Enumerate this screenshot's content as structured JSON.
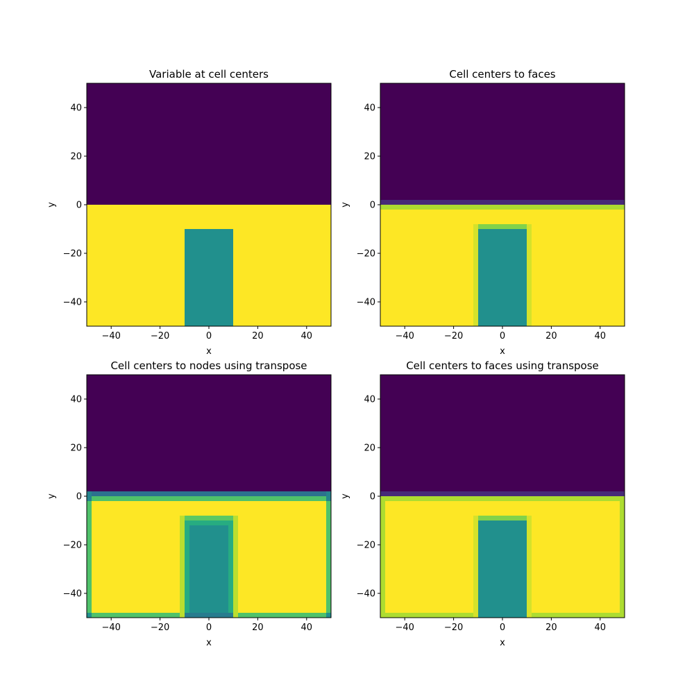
{
  "chart_data": [
    {
      "type": "heatmap",
      "title": "Variable at cell centers",
      "xlabel": "x",
      "ylabel": "y",
      "xlim": [
        -50,
        50
      ],
      "ylim": [
        -50,
        50
      ],
      "xticks": [
        "−40",
        "−20",
        "0",
        "20",
        "40"
      ],
      "yticks": [
        "−40",
        "−20",
        "0",
        "20",
        "40"
      ],
      "cells": [
        {
          "x": [
            -50,
            50
          ],
          "y": [
            0,
            50
          ],
          "value": 0.0
        },
        {
          "x": [
            -50,
            50
          ],
          "y": [
            -50,
            0
          ],
          "value": 1.0
        },
        {
          "x": [
            -10,
            10
          ],
          "y": [
            -50,
            -10
          ],
          "value": 0.5
        }
      ]
    },
    {
      "type": "heatmap",
      "title": "Cell centers to faces",
      "xlabel": "x",
      "ylabel": "y",
      "xlim": [
        -50,
        50
      ],
      "ylim": [
        -50,
        50
      ],
      "xticks": [
        "−40",
        "−20",
        "0",
        "20",
        "40"
      ],
      "yticks": [
        "−40",
        "−20",
        "0",
        "20",
        "40"
      ],
      "cells": [
        {
          "x": [
            -50,
            50
          ],
          "y": [
            0,
            50
          ],
          "value": 0.0
        },
        {
          "x": [
            -50,
            50
          ],
          "y": [
            -50,
            0
          ],
          "value": 1.0
        },
        {
          "x": [
            -50,
            50
          ],
          "y": [
            0,
            2
          ],
          "value": 0.12
        },
        {
          "x": [
            -50,
            50
          ],
          "y": [
            -2,
            0
          ],
          "value": 0.88
        },
        {
          "x": [
            -12,
            12
          ],
          "y": [
            -50,
            -8
          ],
          "value": 0.94
        },
        {
          "x": [
            -10,
            10
          ],
          "y": [
            -50,
            -8
          ],
          "value": 0.81
        },
        {
          "x": [
            -10,
            10
          ],
          "y": [
            -50,
            -10
          ],
          "value": 0.5
        }
      ]
    },
    {
      "type": "heatmap",
      "title": "Cell centers to nodes using transpose",
      "xlabel": "x",
      "ylabel": "y",
      "xlim": [
        -50,
        50
      ],
      "ylim": [
        -50,
        50
      ],
      "xticks": [
        "−40",
        "−20",
        "0",
        "20",
        "40"
      ],
      "yticks": [
        "−40",
        "−20",
        "0",
        "20",
        "40"
      ],
      "cells": [
        {
          "x": [
            -50,
            50
          ],
          "y": [
            0,
            50
          ],
          "value": 0.0
        },
        {
          "x": [
            -50,
            50
          ],
          "y": [
            -50,
            0
          ],
          "value": 1.0
        },
        {
          "x": [
            -50,
            50
          ],
          "y": [
            0,
            2
          ],
          "value": 0.38
        },
        {
          "x": [
            -50,
            50
          ],
          "y": [
            -2,
            0
          ],
          "value": 0.72
        },
        {
          "x": [
            -50,
            -48
          ],
          "y": [
            -50,
            0
          ],
          "value": 0.72
        },
        {
          "x": [
            48,
            50
          ],
          "y": [
            -50,
            0
          ],
          "value": 0.72
        },
        {
          "x": [
            -50,
            50
          ],
          "y": [
            -50,
            -48
          ],
          "value": 0.72
        },
        {
          "x": [
            -12,
            12
          ],
          "y": [
            -50,
            -8
          ],
          "value": 0.9
        },
        {
          "x": [
            -10,
            10
          ],
          "y": [
            -50,
            -8
          ],
          "value": 0.75
        },
        {
          "x": [
            -10,
            10
          ],
          "y": [
            -50,
            -10
          ],
          "value": 0.62
        },
        {
          "x": [
            -8,
            8
          ],
          "y": [
            -50,
            -12
          ],
          "value": 0.5
        },
        {
          "x": [
            -50,
            -48
          ],
          "y": [
            -50,
            -48
          ],
          "value": 0.5
        },
        {
          "x": [
            48,
            50
          ],
          "y": [
            -50,
            -48
          ],
          "value": 0.5
        },
        {
          "x": [
            -10,
            10
          ],
          "y": [
            -50,
            -48
          ],
          "value": 0.42
        },
        {
          "x": [
            -50,
            -48
          ],
          "y": [
            -2,
            2
          ],
          "value": 0.45
        },
        {
          "x": [
            48,
            50
          ],
          "y": [
            -2,
            2
          ],
          "value": 0.45
        }
      ]
    },
    {
      "type": "heatmap",
      "title": "Cell centers to faces using transpose",
      "xlabel": "x",
      "ylabel": "y",
      "xlim": [
        -50,
        50
      ],
      "ylim": [
        -50,
        50
      ],
      "xticks": [
        "−40",
        "−20",
        "0",
        "20",
        "40"
      ],
      "yticks": [
        "−40",
        "−20",
        "0",
        "20",
        "40"
      ],
      "cells": [
        {
          "x": [
            -50,
            50
          ],
          "y": [
            0,
            50
          ],
          "value": 0.0
        },
        {
          "x": [
            -50,
            50
          ],
          "y": [
            -50,
            0
          ],
          "value": 1.0
        },
        {
          "x": [
            -50,
            50
          ],
          "y": [
            0,
            2
          ],
          "value": 0.12
        },
        {
          "x": [
            -50,
            50
          ],
          "y": [
            -2,
            0
          ],
          "value": 0.88
        },
        {
          "x": [
            -50,
            -48
          ],
          "y": [
            -50,
            0
          ],
          "value": 0.88
        },
        {
          "x": [
            48,
            50
          ],
          "y": [
            -50,
            0
          ],
          "value": 0.88
        },
        {
          "x": [
            -50,
            50
          ],
          "y": [
            -50,
            -48
          ],
          "value": 0.88
        },
        {
          "x": [
            -12,
            12
          ],
          "y": [
            -50,
            -8
          ],
          "value": 0.94
        },
        {
          "x": [
            -10,
            10
          ],
          "y": [
            -50,
            -8
          ],
          "value": 0.81
        },
        {
          "x": [
            -10,
            10
          ],
          "y": [
            -50,
            -10
          ],
          "value": 0.5
        },
        {
          "x": [
            -10,
            10
          ],
          "y": [
            -50,
            -48
          ],
          "value": 0.5
        }
      ]
    }
  ]
}
